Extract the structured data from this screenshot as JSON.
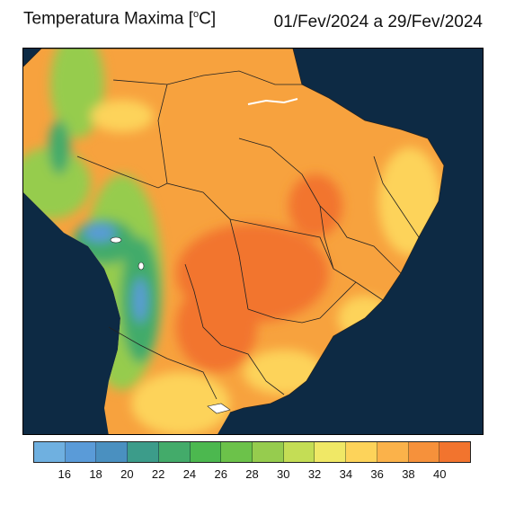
{
  "header": {
    "variable_prefix": "Temperatura Ma",
    "accent_letter": "x",
    "variable_suffix": "ima [",
    "unit_sup": "o",
    "unit_close": "C]",
    "period": "01/Fev/2024 a 29/Fev/2024"
  },
  "legend": {
    "colors": [
      "#6fb0e0",
      "#5a9bd8",
      "#4a90c0",
      "#3c9c8a",
      "#43ab6a",
      "#4cb84f",
      "#6cc24a",
      "#96cc4e",
      "#c4dd55",
      "#f0e866",
      "#fdd35a",
      "#fbb24a",
      "#f6913b",
      "#f2742e"
    ],
    "tick_labels": [
      "16",
      "18",
      "20",
      "22",
      "24",
      "26",
      "28",
      "30",
      "32",
      "34",
      "36",
      "38",
      "40"
    ]
  },
  "map": {
    "ocean_color": "#0d2a44",
    "land_color": "#f7a23e",
    "hot_color": "#f2742e",
    "warm_color": "#fdd35a",
    "mild_color": "#96cc4e",
    "cool_color": "#43ab6a",
    "cold_color": "#5a9bd8"
  }
}
